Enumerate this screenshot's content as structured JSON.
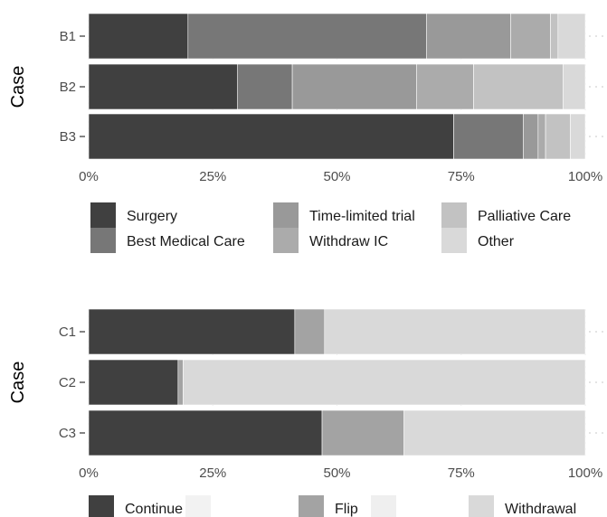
{
  "chart_data": [
    {
      "type": "bar",
      "orientation": "horizontal",
      "stacked": true,
      "normalized": true,
      "categories": [
        "B1",
        "B2",
        "B3"
      ],
      "ylabel": "Case",
      "xlim": [
        0,
        1
      ],
      "x_ticks": [
        "0%",
        "25%",
        "50%",
        "75%",
        "100%"
      ],
      "grid": true,
      "legend": "bottom",
      "series": [
        {
          "name": "Surgery",
          "color": "#404040",
          "values": [
            0.2,
            0.3,
            0.735
          ]
        },
        {
          "name": "Best Medical Care",
          "color": "#777777",
          "values": [
            0.48,
            0.11,
            0.14
          ]
        },
        {
          "name": "Time-limited trial",
          "color": "#999999",
          "values": [
            0.17,
            0.25,
            0.03
          ]
        },
        {
          "name": "Withdraw IC",
          "color": "#ababab",
          "values": [
            0.08,
            0.115,
            0.015
          ]
        },
        {
          "name": "Palliative Care",
          "color": "#c2c2c2",
          "values": [
            0.015,
            0.18,
            0.05
          ]
        },
        {
          "name": "Other",
          "color": "#d9d9d9",
          "values": [
            0.055,
            0.045,
            0.03
          ]
        }
      ]
    },
    {
      "type": "bar",
      "orientation": "horizontal",
      "stacked": true,
      "normalized": true,
      "categories": [
        "C1",
        "C2",
        "C3"
      ],
      "ylabel": "Case",
      "xlim": [
        0,
        1
      ],
      "x_ticks": [
        "0%",
        "25%",
        "50%",
        "75%",
        "100%"
      ],
      "grid": true,
      "legend": "bottom",
      "series": [
        {
          "name": "Continue",
          "color": "#404040",
          "values": [
            0.415,
            0.18,
            0.47
          ]
        },
        {
          "name": "",
          "color": "#f2f2f2",
          "values": [
            0,
            0,
            0
          ]
        },
        {
          "name": "Flip",
          "color": "#a3a3a3",
          "values": [
            0.06,
            0.01,
            0.165
          ]
        },
        {
          "name": "",
          "color": "#efefef",
          "values": [
            0,
            0,
            0
          ]
        },
        {
          "name": "Withdrawal",
          "color": "#d9d9d9",
          "values": [
            0.525,
            0.81,
            0.365
          ]
        }
      ]
    }
  ]
}
